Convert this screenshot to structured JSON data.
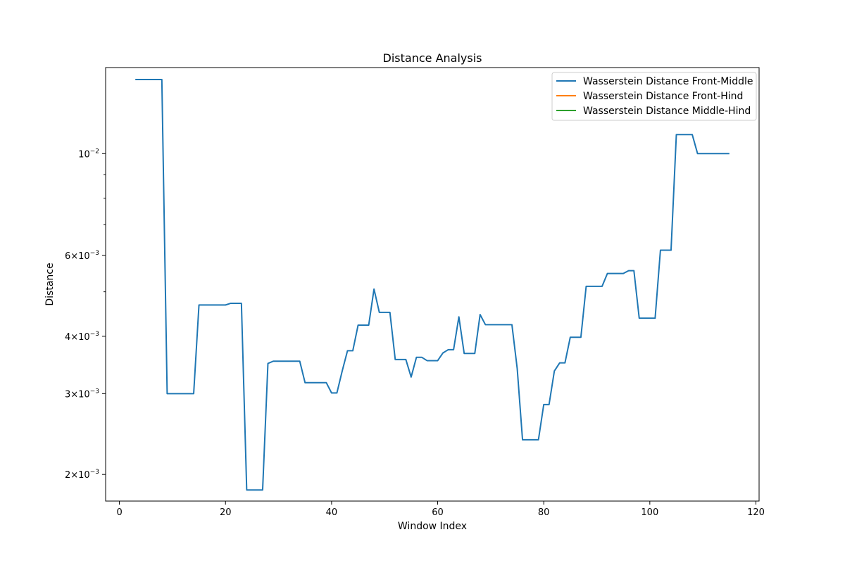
{
  "chart_data": {
    "type": "line",
    "title": "Distance Analysis",
    "xlabel": "Window Index",
    "ylabel": "Distance",
    "y_scale": "log",
    "grid": false,
    "legend_placement": "top-right",
    "xlim": [
      -2.6,
      120.6
    ],
    "ylim": [
      0.00175,
      0.0154
    ],
    "x_ticks": [
      0,
      20,
      40,
      60,
      80,
      100,
      120
    ],
    "x_tick_labels": [
      "0",
      "20",
      "40",
      "60",
      "80",
      "100",
      "120"
    ],
    "y_ticks": [
      0.002,
      0.003,
      0.004,
      0.006,
      0.01
    ],
    "y_tick_labels": [
      {
        "base": "2×10",
        "exp": "−3"
      },
      {
        "base": "3×10",
        "exp": "−3"
      },
      {
        "base": "4×10",
        "exp": "−3"
      },
      {
        "base": "6×10",
        "exp": "−3"
      },
      {
        "base": "10",
        "exp": "−2"
      }
    ],
    "y_minor_ticks": [
      0.005,
      0.007,
      0.008,
      0.009
    ],
    "series": [
      {
        "name": "Wasserstein Distance Front-Middle",
        "color": "#1f77b4",
        "points": [
          [
            3,
            0.0145
          ],
          [
            8,
            0.0145
          ],
          [
            9,
            0.003
          ],
          [
            14,
            0.003
          ],
          [
            15,
            0.00468
          ],
          [
            20,
            0.00468
          ],
          [
            21,
            0.00472
          ],
          [
            23,
            0.00472
          ],
          [
            24,
            0.00185
          ],
          [
            27,
            0.00185
          ],
          [
            28,
            0.00349
          ],
          [
            29,
            0.00353
          ],
          [
            34,
            0.00353
          ],
          [
            35,
            0.00317
          ],
          [
            39,
            0.00317
          ],
          [
            40,
            0.00301
          ],
          [
            41,
            0.00301
          ],
          [
            42,
            0.00336
          ],
          [
            43,
            0.00372
          ],
          [
            44,
            0.00372
          ],
          [
            45,
            0.00423
          ],
          [
            47,
            0.00423
          ],
          [
            48,
            0.00507
          ],
          [
            49,
            0.00451
          ],
          [
            51,
            0.00451
          ],
          [
            52,
            0.00356
          ],
          [
            54,
            0.00356
          ],
          [
            55,
            0.00326
          ],
          [
            56,
            0.0036
          ],
          [
            57,
            0.0036
          ],
          [
            58,
            0.00354
          ],
          [
            60,
            0.00354
          ],
          [
            61,
            0.00368
          ],
          [
            62,
            0.00374
          ],
          [
            63,
            0.00374
          ],
          [
            64,
            0.00441
          ],
          [
            65,
            0.00367
          ],
          [
            67,
            0.00367
          ],
          [
            68,
            0.00446
          ],
          [
            69,
            0.00424
          ],
          [
            74,
            0.00424
          ],
          [
            75,
            0.0034
          ],
          [
            76,
            0.00238
          ],
          [
            79,
            0.00238
          ],
          [
            80,
            0.00284
          ],
          [
            81,
            0.00284
          ],
          [
            82,
            0.00336
          ],
          [
            83,
            0.0035
          ],
          [
            84,
            0.0035
          ],
          [
            85,
            0.00398
          ],
          [
            87,
            0.00398
          ],
          [
            88,
            0.00514
          ],
          [
            91,
            0.00514
          ],
          [
            92,
            0.00548
          ],
          [
            95,
            0.00548
          ],
          [
            96,
            0.00556
          ],
          [
            97,
            0.00556
          ],
          [
            98,
            0.00438
          ],
          [
            101,
            0.00438
          ],
          [
            102,
            0.00616
          ],
          [
            104,
            0.00616
          ],
          [
            105,
            0.011
          ],
          [
            108,
            0.011
          ],
          [
            109,
            0.01
          ],
          [
            115,
            0.01
          ]
        ]
      },
      {
        "name": "Wasserstein Distance Front-Hind",
        "color": "#ff7f0e",
        "points": []
      },
      {
        "name": "Wasserstein Distance Middle-Hind",
        "color": "#2ca02c",
        "points": []
      }
    ]
  }
}
